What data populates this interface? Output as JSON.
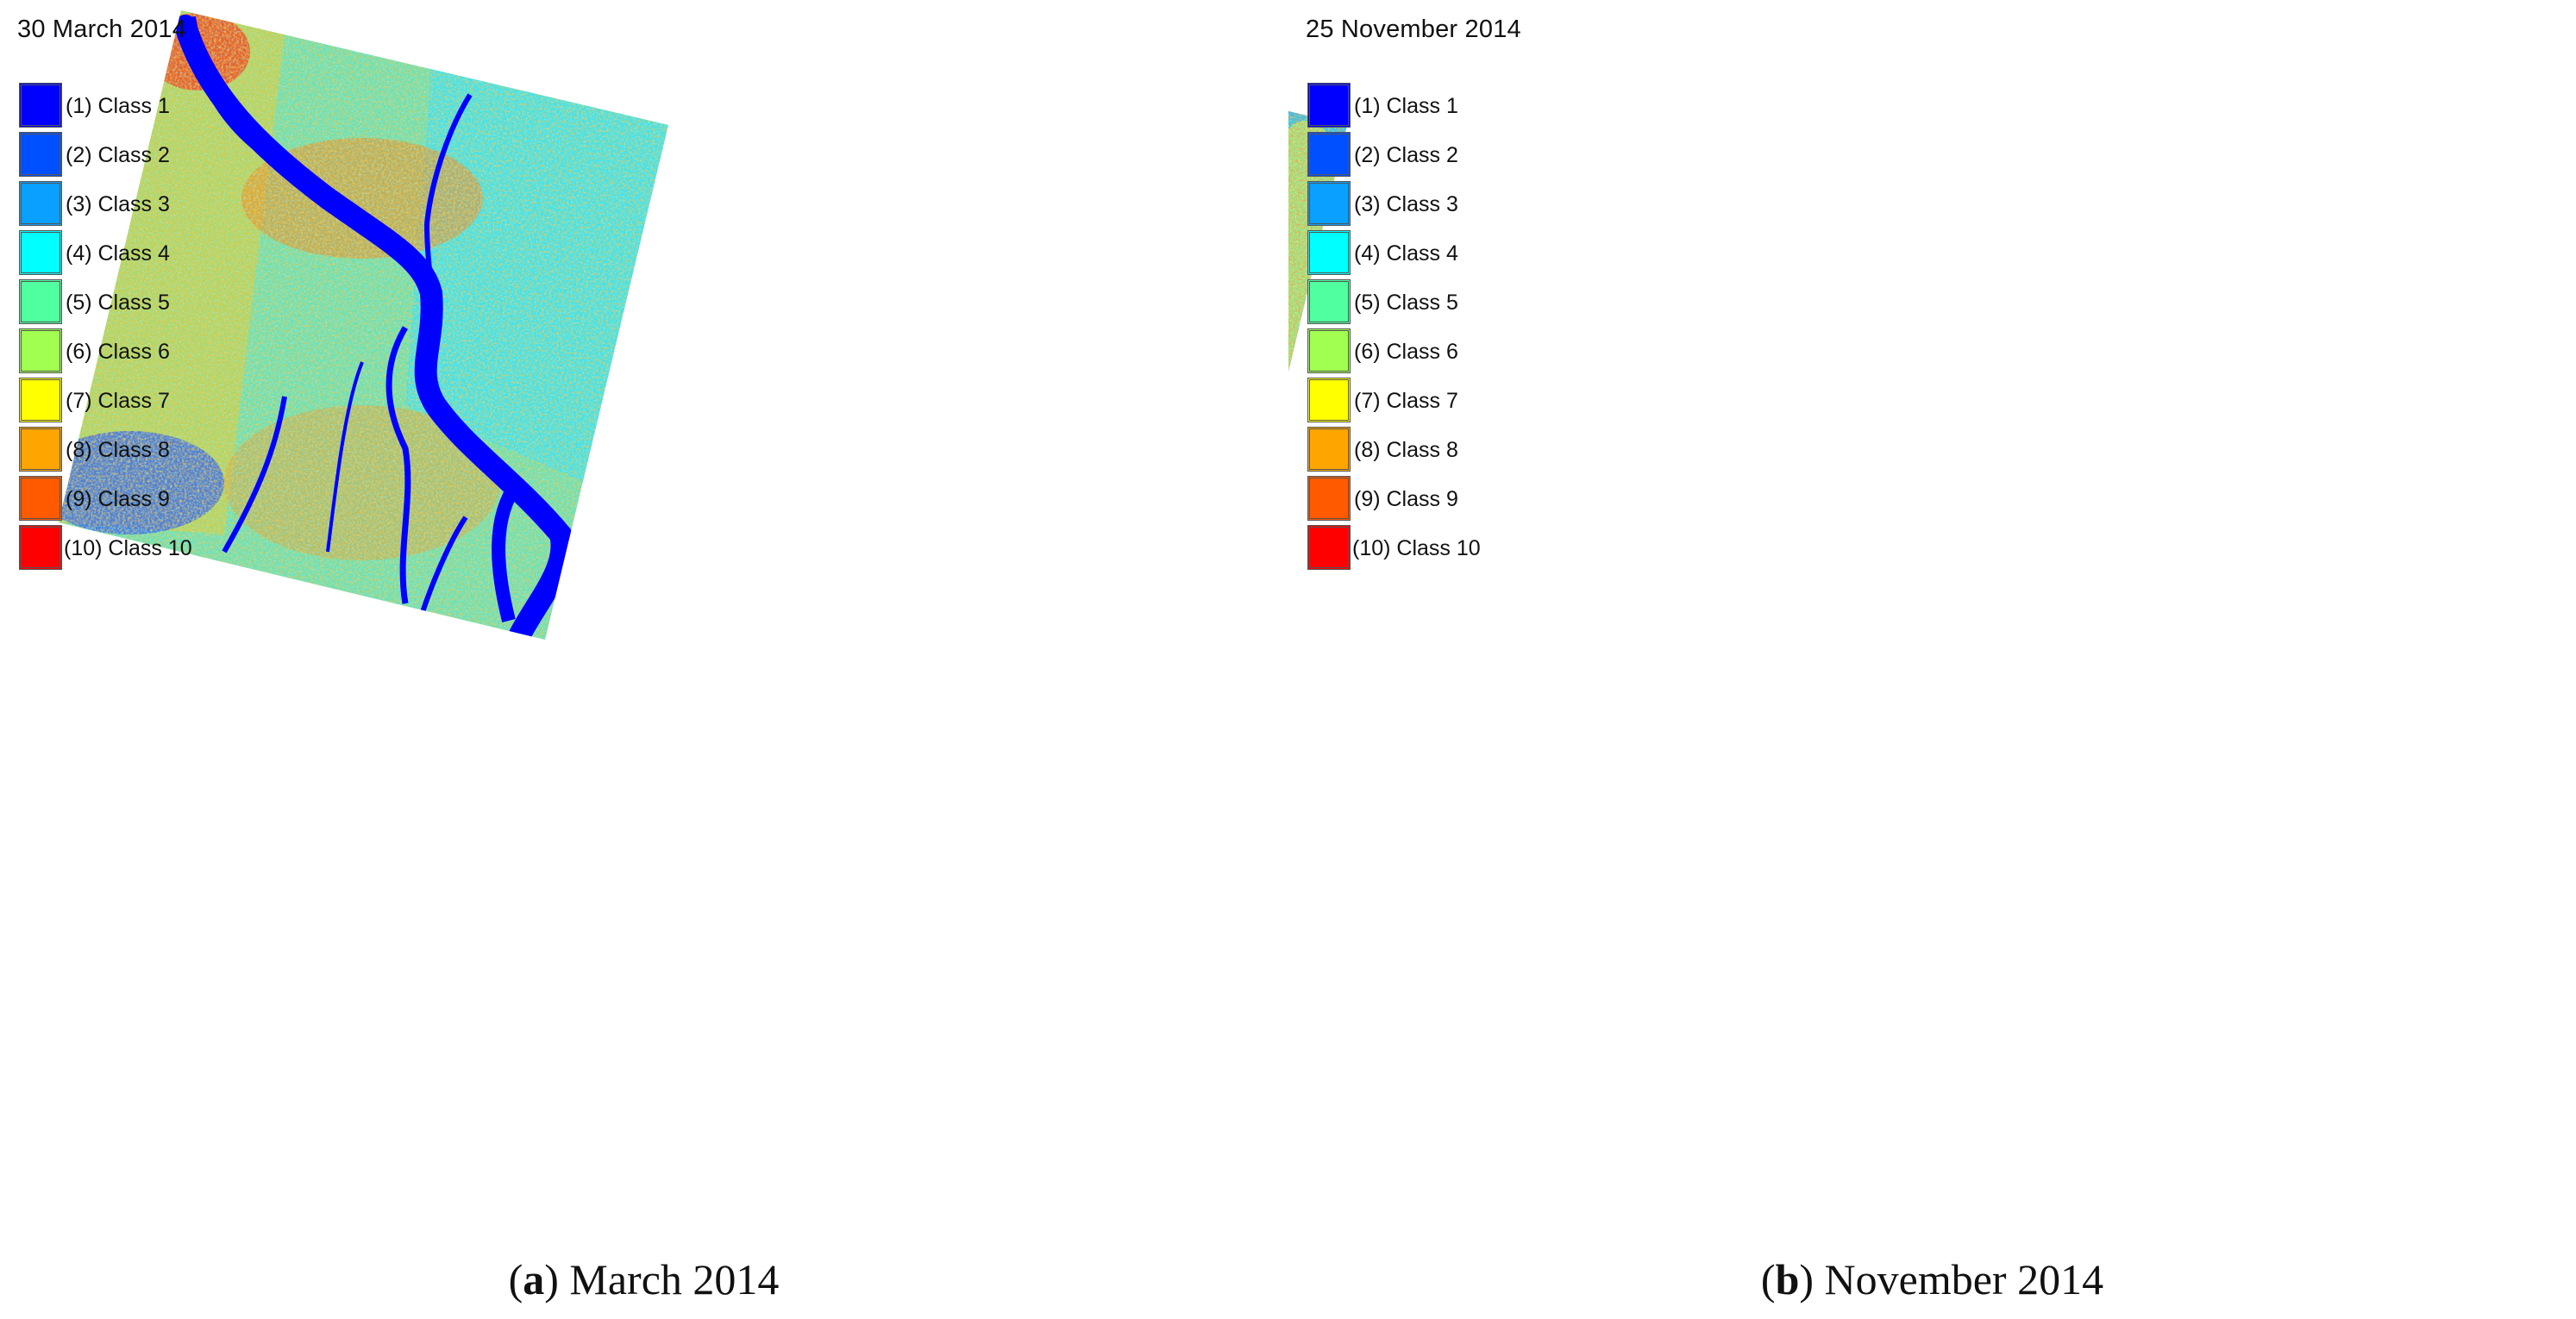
{
  "panels": [
    {
      "id": "a",
      "date": "30 March 2014",
      "caption_letter": "a",
      "caption_text": ") March 2014",
      "caption_open": "("
    },
    {
      "id": "b",
      "date": "25 November 2014",
      "caption_letter": "b",
      "caption_text": ") November 2014",
      "caption_open": "("
    }
  ],
  "legend": [
    {
      "label": "(1) Class 1",
      "color": "#0000ff"
    },
    {
      "label": "(2) Class 2",
      "color": "#0050ff"
    },
    {
      "label": "(3) Class 3",
      "color": "#0aa0ff"
    },
    {
      "label": "(4) Class 4",
      "color": "#00ffff"
    },
    {
      "label": "(5) Class 5",
      "color": "#50ffa0"
    },
    {
      "label": "(6) Class 6",
      "color": "#a0ff50"
    },
    {
      "label": "(7) Class 7",
      "color": "#ffff00"
    },
    {
      "label": "(8) Class 8",
      "color": "#ffa500"
    },
    {
      "label": "(9) Class 9",
      "color": "#ff5a00"
    },
    {
      "label": "(10) Class 10",
      "color": "#ff0000"
    }
  ],
  "map_palette": {
    "a": [
      "#4ee8c8",
      "#3fd9e6",
      "#9cf05a",
      "#f0b030",
      "#ff8a00",
      "#ff3a10"
    ],
    "b": [
      "#1f8cff",
      "#2fc9ef",
      "#e6f53a",
      "#ff9f1a",
      "#ff5a00",
      "#ff1a10"
    ]
  }
}
